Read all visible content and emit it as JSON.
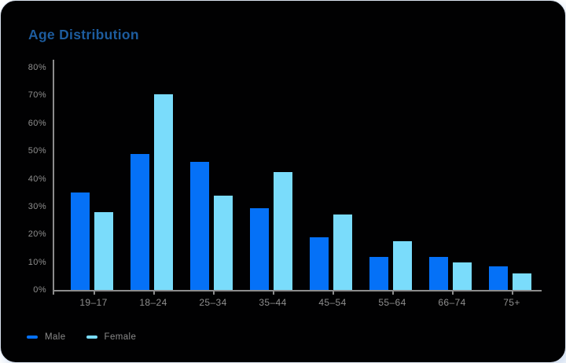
{
  "card": {
    "title": "Age Distribution",
    "title_color": "#1d5c9e",
    "background": "#010102",
    "border_color": "#d9e2ef"
  },
  "chart_data": {
    "type": "bar",
    "title": "Age Distribution",
    "categories": [
      "19–17",
      "18–24",
      "25–34",
      "35–44",
      "45–54",
      "55–64",
      "66–74",
      "75+"
    ],
    "series": [
      {
        "name": "Male",
        "color": "#0571f7",
        "values": [
          35,
          49,
          46,
          29.5,
          19,
          12,
          12,
          8.5
        ]
      },
      {
        "name": "Female",
        "color": "#7adcfb",
        "values": [
          28,
          70.5,
          34,
          42.5,
          27,
          17.5,
          10,
          6
        ]
      }
    ],
    "ylim": [
      0,
      80
    ],
    "y_tick_step": 10,
    "y_tick_suffix": "%",
    "y_tick_labels": [
      "0%",
      "10%",
      "20%",
      "30%",
      "40%",
      "50%",
      "60%",
      "70%",
      "80%"
    ],
    "grid": false,
    "legend_position": "bottom-left",
    "axis_color": "#8c8c8c",
    "tick_label_color": "#8f8f8f"
  }
}
